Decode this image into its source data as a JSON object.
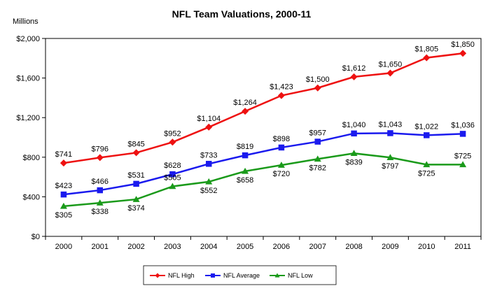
{
  "chart_data": {
    "type": "line",
    "title": "NFL Team Valuations, 2000-11",
    "ylabel": "Millions",
    "xlabel": "",
    "x": [
      "2000",
      "2001",
      "2002",
      "2003",
      "2004",
      "2005",
      "2006",
      "2007",
      "2008",
      "2009",
      "2010",
      "2011"
    ],
    "ylim": [
      0,
      2000
    ],
    "yticks": [
      0,
      400,
      800,
      1200,
      1600,
      2000
    ],
    "ytick_labels": [
      "$0",
      "$400",
      "$800",
      "$1,200",
      "$1,600",
      "$2,000"
    ],
    "grid": false,
    "legend_position": "bottom",
    "series": [
      {
        "name": "NFL High",
        "color": "#ee1111",
        "marker": "diamond",
        "values": [
          741,
          796,
          845,
          952,
          1104,
          1264,
          1423,
          1500,
          1612,
          1650,
          1805,
          1850
        ],
        "labels": [
          "$741",
          "$796",
          "$845",
          "$952",
          "$1,104",
          "$1,264",
          "$1,423",
          "$1,500",
          "$1,612",
          "$1,650",
          "$1,805",
          "$1,850"
        ]
      },
      {
        "name": "NFL Average",
        "color": "#1a1aee",
        "marker": "square",
        "values": [
          423,
          466,
          531,
          628,
          733,
          819,
          898,
          957,
          1040,
          1043,
          1022,
          1036
        ],
        "labels": [
          "$423",
          "$466",
          "$531",
          "$628",
          "$733",
          "$819",
          "$898",
          "$957",
          "$1,040",
          "$1,043",
          "$1,022",
          "$1,036"
        ]
      },
      {
        "name": "NFL Low",
        "color": "#1a9a1a",
        "marker": "triangle",
        "values": [
          305,
          338,
          374,
          505,
          552,
          658,
          720,
          782,
          839,
          797,
          725,
          725
        ],
        "labels": [
          "$305",
          "$338",
          "$374",
          "$505",
          "$552",
          "$658",
          "$720",
          "$782",
          "$839",
          "$797",
          "$725",
          "$725"
        ]
      }
    ]
  }
}
